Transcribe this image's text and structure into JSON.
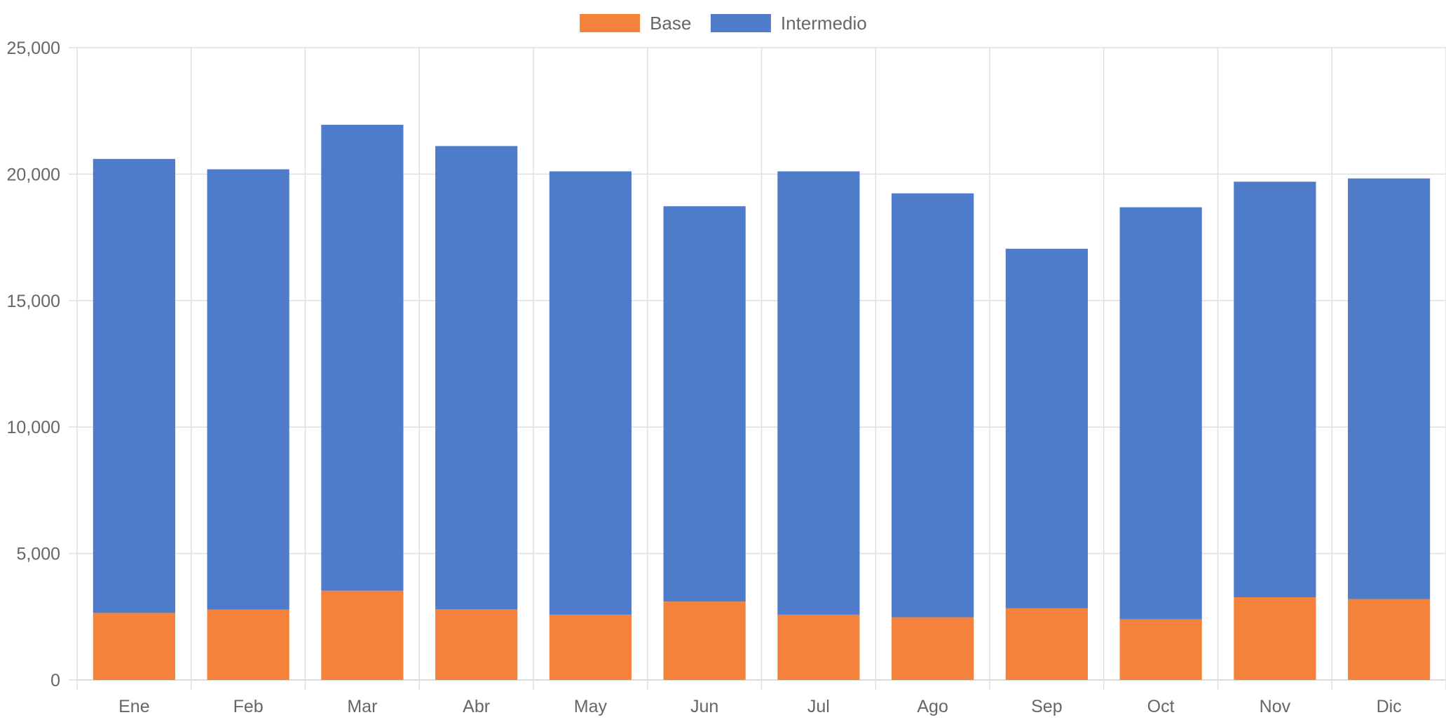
{
  "chart_data": {
    "type": "bar",
    "stacked": true,
    "title": "",
    "xlabel": "",
    "ylabel": "",
    "ylim": [
      0,
      25000
    ],
    "yticks": [
      0,
      5000,
      10000,
      15000,
      20000,
      25000
    ],
    "ytick_labels": [
      "0",
      "5,000",
      "10,000",
      "15,000",
      "20,000",
      "25,000"
    ],
    "grid": true,
    "legend_position": "top-center",
    "categories": [
      "Ene",
      "Feb",
      "Mar",
      "Abr",
      "May",
      "Jun",
      "Jul",
      "Ago",
      "Sep",
      "Oct",
      "Nov",
      "Dic"
    ],
    "series": [
      {
        "name": "Base",
        "color": "#f5823a",
        "values": [
          2650,
          2780,
          3530,
          2800,
          2580,
          3100,
          2580,
          2480,
          2830,
          2400,
          3270,
          3200
        ]
      },
      {
        "name": "Intermedio",
        "color": "#4f7bcb",
        "values": [
          17950,
          17410,
          18420,
          18310,
          17530,
          15630,
          17530,
          16760,
          14220,
          16290,
          16430,
          16630
        ]
      }
    ]
  }
}
